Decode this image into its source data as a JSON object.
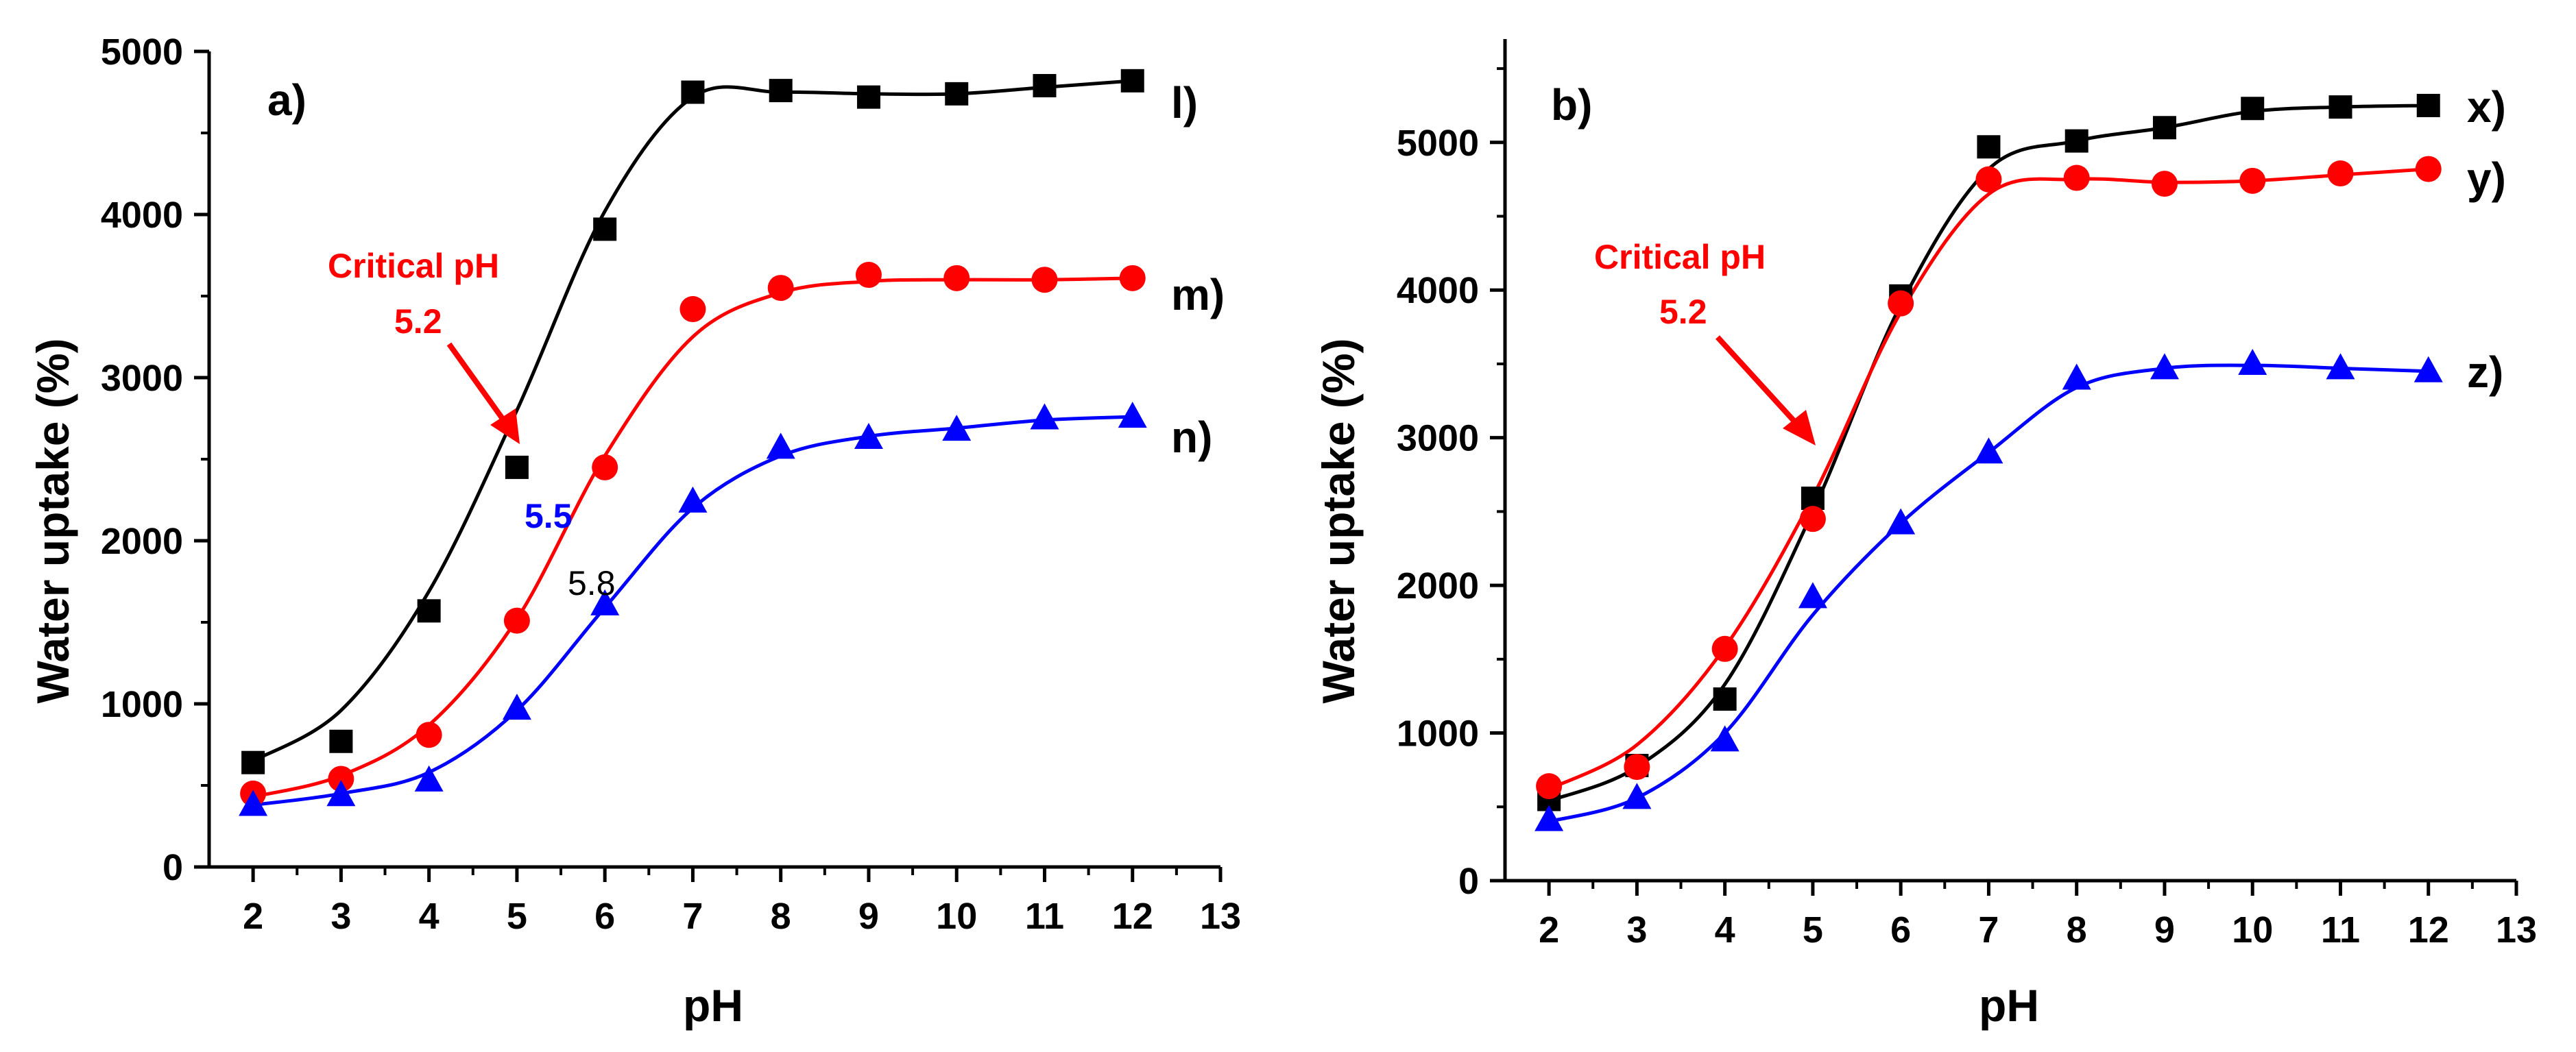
{
  "chart_data": [
    {
      "type": "scatter",
      "panel_label": "a)",
      "xlabel": "pH",
      "ylabel": "Water uptake (%)",
      "xlim": [
        1.5,
        13
      ],
      "ylim": [
        0,
        5000
      ],
      "xticks": [
        2,
        3,
        4,
        5,
        6,
        7,
        8,
        9,
        10,
        11,
        12,
        13
      ],
      "yticks": [
        0,
        1000,
        2000,
        3000,
        4000,
        5000
      ],
      "x": [
        2,
        3,
        4,
        5,
        6,
        7,
        8,
        9,
        10,
        11,
        12
      ],
      "series": [
        {
          "name": "l)",
          "marker": "square",
          "color": "#000000",
          "values": [
            640,
            770,
            1570,
            2450,
            3910,
            4750,
            4760,
            4720,
            4740,
            4790,
            4820
          ],
          "fit": [
            650,
            960,
            1690,
            2800,
            4020,
            4720,
            4750,
            4740,
            4740,
            4780,
            4820
          ]
        },
        {
          "name": "m)",
          "marker": "circle",
          "color": "#ff0000",
          "values": [
            450,
            540,
            810,
            1510,
            2450,
            3420,
            3550,
            3630,
            3610,
            3600,
            3610
          ],
          "fit": [
            430,
            560,
            870,
            1520,
            2520,
            3250,
            3520,
            3590,
            3600,
            3600,
            3610
          ]
        },
        {
          "name": "n)",
          "marker": "triangle",
          "color": "#0000ff",
          "values": [
            380,
            440,
            530,
            970,
            1610,
            2240,
            2570,
            2630,
            2680,
            2750,
            2760
          ],
          "fit": [
            380,
            450,
            580,
            960,
            1590,
            2200,
            2520,
            2640,
            2690,
            2740,
            2760
          ]
        }
      ],
      "annotations": [
        {
          "text": "Critical pH",
          "color": "#ff0000"
        },
        {
          "text": "5.2",
          "color": "#ff0000"
        },
        {
          "text": "5.5",
          "color": "#0000ff"
        },
        {
          "text": "5.8",
          "color": "#000000"
        }
      ]
    },
    {
      "type": "scatter",
      "panel_label": "b)",
      "xlabel": "pH",
      "ylabel": "Water uptake (%)",
      "xlim": [
        1.5,
        13
      ],
      "ylim": [
        0,
        5700
      ],
      "xticks": [
        2,
        3,
        4,
        5,
        6,
        7,
        8,
        9,
        10,
        11,
        12,
        13
      ],
      "yticks": [
        0,
        1000,
        2000,
        3000,
        4000,
        5000
      ],
      "x": [
        2,
        3,
        4,
        5,
        6,
        7,
        8,
        9,
        10,
        11,
        12
      ],
      "series": [
        {
          "name": "x)",
          "marker": "square",
          "color": "#000000",
          "values": [
            550,
            780,
            1230,
            2590,
            3960,
            4970,
            5010,
            5100,
            5230,
            5240,
            5250
          ],
          "fit": [
            540,
            770,
            1330,
            2500,
            3900,
            4820,
            5010,
            5100,
            5210,
            5240,
            5250
          ]
        },
        {
          "name": "y)",
          "marker": "circle",
          "color": "#ff0000",
          "values": [
            640,
            770,
            1570,
            2450,
            3910,
            4750,
            4760,
            4720,
            4740,
            4790,
            4820
          ],
          "fit": [
            620,
            920,
            1580,
            2600,
            3850,
            4650,
            4750,
            4730,
            4740,
            4780,
            4820
          ]
        },
        {
          "name": "z)",
          "marker": "triangle",
          "color": "#0000ff",
          "values": [
            410,
            560,
            950,
            1920,
            2420,
            2900,
            3400,
            3470,
            3500,
            3470,
            3450
          ],
          "fit": [
            400,
            560,
            1000,
            1800,
            2420,
            2900,
            3340,
            3470,
            3490,
            3470,
            3450
          ]
        }
      ],
      "annotations": [
        {
          "text": "Critical pH",
          "color": "#ff0000"
        },
        {
          "text": "5.2",
          "color": "#ff0000"
        }
      ]
    }
  ]
}
